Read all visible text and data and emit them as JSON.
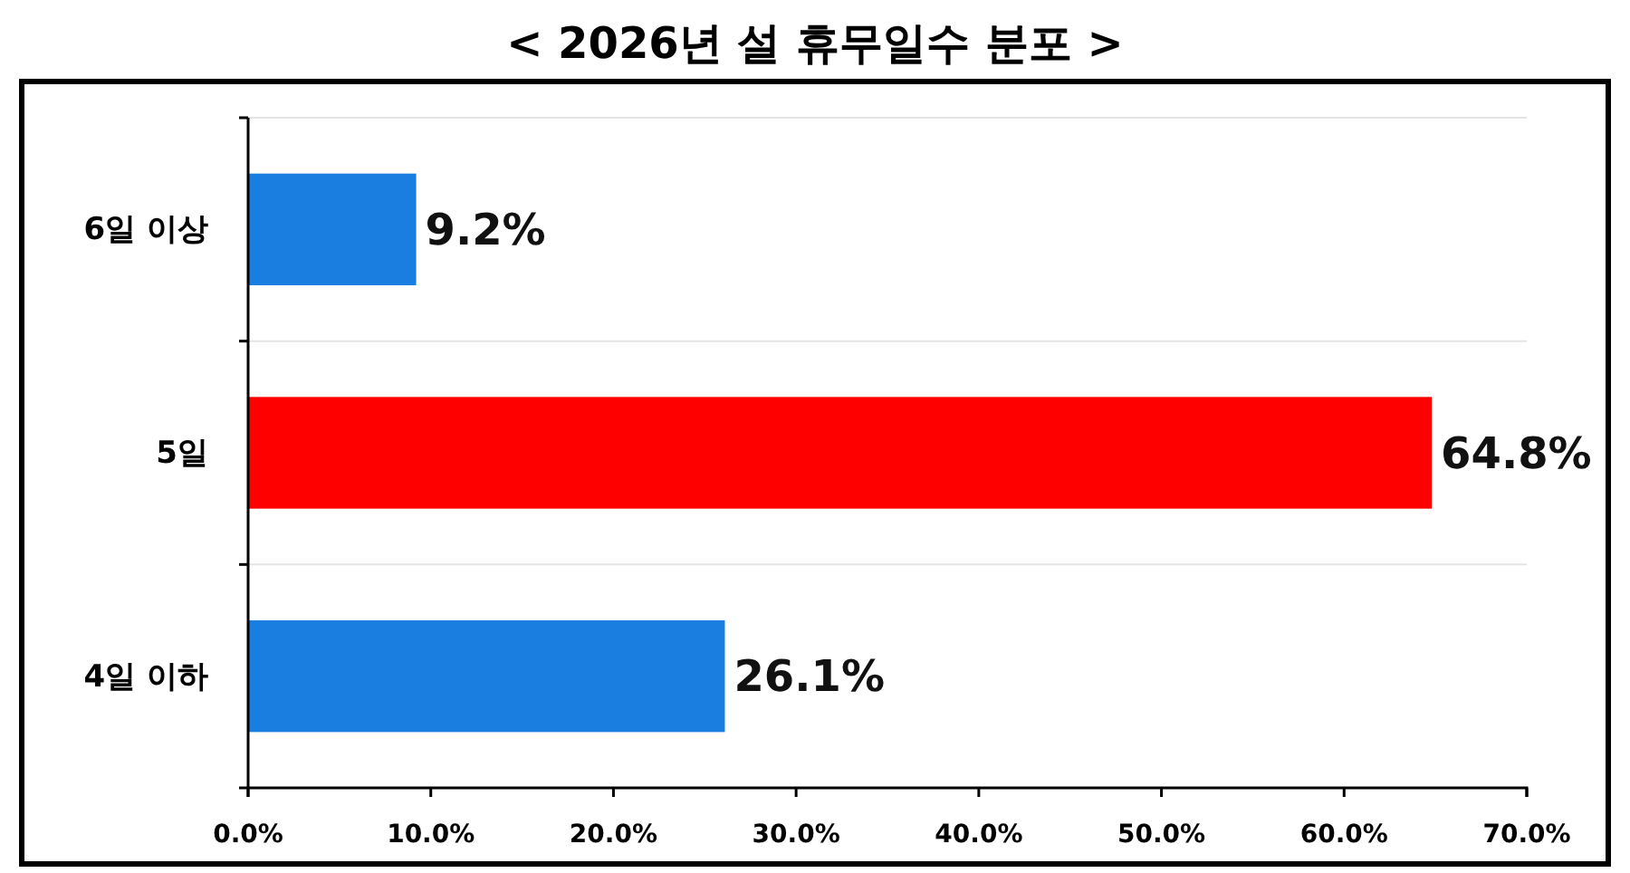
{
  "chart_data": {
    "type": "bar",
    "orientation": "horizontal",
    "title": "< 2026년 설 휴무일수 분포 >",
    "categories": [
      "6일 이상",
      "5일",
      "4일 이하"
    ],
    "values": [
      9.2,
      64.8,
      26.1
    ],
    "value_labels": [
      "9.2%",
      "64.8%",
      "26.1%"
    ],
    "colors": [
      "#1a7ee0",
      "#ff0000",
      "#1a7ee0"
    ],
    "xlim": [
      0,
      70
    ],
    "xticks": [
      {
        "value": 0,
        "label": "0.0%"
      },
      {
        "value": 10,
        "label": "10.0%"
      },
      {
        "value": 20,
        "label": "20.0%"
      },
      {
        "value": 30,
        "label": "30.0%"
      },
      {
        "value": 40,
        "label": "40.0%"
      },
      {
        "value": 50,
        "label": "50.0%"
      },
      {
        "value": 60,
        "label": "60.0%"
      },
      {
        "value": 70,
        "label": "70.0%"
      }
    ],
    "grid": "y"
  }
}
